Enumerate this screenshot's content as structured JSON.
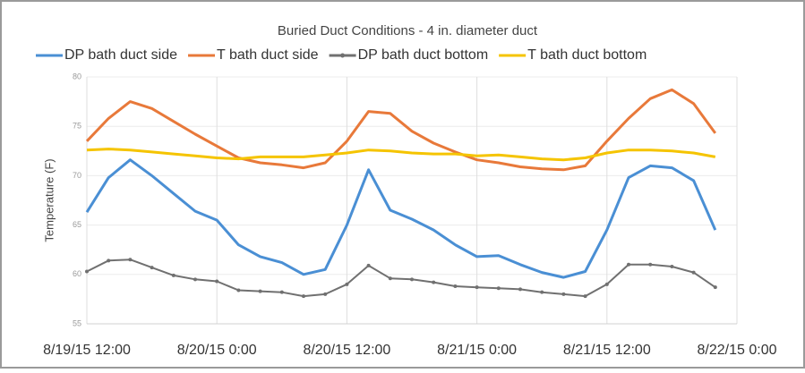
{
  "chart_data": {
    "type": "line",
    "title": "Buried Duct Conditions - 4 in. diameter duct",
    "y_label": "Temperature (F)",
    "x": [
      "8/19/15 12:00",
      "8/19/15 14:00",
      "8/19/15 16:00",
      "8/19/15 18:00",
      "8/19/15 20:00",
      "8/19/15 22:00",
      "8/20/15 0:00",
      "8/20/15 2:00",
      "8/20/15 4:00",
      "8/20/15 6:00",
      "8/20/15 8:00",
      "8/20/15 10:00",
      "8/20/15 12:00",
      "8/20/15 14:00",
      "8/20/15 16:00",
      "8/20/15 18:00",
      "8/20/15 20:00",
      "8/20/15 22:00",
      "8/21/15 0:00",
      "8/21/15 2:00",
      "8/21/15 4:00",
      "8/21/15 6:00",
      "8/21/15 8:00",
      "8/21/15 10:00",
      "8/21/15 12:00",
      "8/21/15 14:00",
      "8/21/15 16:00",
      "8/21/15 18:00",
      "8/21/15 20:00",
      "8/21/15 22:00"
    ],
    "xlim": [
      "8/19/15 12:00",
      "8/22/15 0:00"
    ],
    "xticks": [
      "8/19/15 12:00",
      "8/20/15 0:00",
      "8/20/15 12:00",
      "8/21/15 0:00",
      "8/21/15 12:00",
      "8/22/15 0:00"
    ],
    "ylim": [
      55,
      80
    ],
    "yticks": [
      55,
      60,
      65,
      70,
      75,
      80
    ],
    "grid": true,
    "legend": "top",
    "series": [
      {
        "name": "DP bath duct side",
        "color": "#4a8fd4",
        "marker": false,
        "values": [
          66.3,
          69.8,
          71.6,
          70.0,
          68.2,
          66.4,
          65.5,
          63.0,
          61.8,
          61.2,
          60.0,
          60.5,
          65.0,
          70.6,
          66.5,
          65.6,
          64.5,
          63.0,
          61.8,
          61.9,
          61.0,
          60.2,
          59.7,
          60.3,
          64.5,
          69.8,
          71.0,
          70.8,
          69.5,
          64.5
        ]
      },
      {
        "name": "T bath duct side",
        "color": "#e8793a",
        "marker": false,
        "values": [
          73.5,
          75.8,
          77.5,
          76.8,
          75.5,
          74.2,
          73.0,
          71.8,
          71.3,
          71.1,
          70.8,
          71.3,
          73.5,
          76.5,
          76.3,
          74.5,
          73.3,
          72.4,
          71.6,
          71.3,
          70.9,
          70.7,
          70.6,
          71.0,
          73.5,
          75.8,
          77.8,
          78.7,
          77.3,
          74.3
        ]
      },
      {
        "name": "DP bath duct bottom",
        "color": "#707070",
        "marker": true,
        "values": [
          60.3,
          61.4,
          61.5,
          60.7,
          59.9,
          59.5,
          59.3,
          58.4,
          58.3,
          58.2,
          57.8,
          58.0,
          59.0,
          60.9,
          59.6,
          59.5,
          59.2,
          58.8,
          58.7,
          58.6,
          58.5,
          58.2,
          58.0,
          57.8,
          59.0,
          61.0,
          61.0,
          60.8,
          60.2,
          58.7
        ]
      },
      {
        "name": "T bath duct bottom",
        "color": "#f5c400",
        "marker": false,
        "values": [
          72.6,
          72.7,
          72.6,
          72.4,
          72.2,
          72.0,
          71.8,
          71.7,
          71.9,
          71.9,
          71.9,
          72.1,
          72.3,
          72.6,
          72.5,
          72.3,
          72.2,
          72.2,
          72.0,
          72.1,
          71.9,
          71.7,
          71.6,
          71.8,
          72.3,
          72.6,
          72.6,
          72.5,
          72.3,
          71.9
        ]
      }
    ]
  }
}
